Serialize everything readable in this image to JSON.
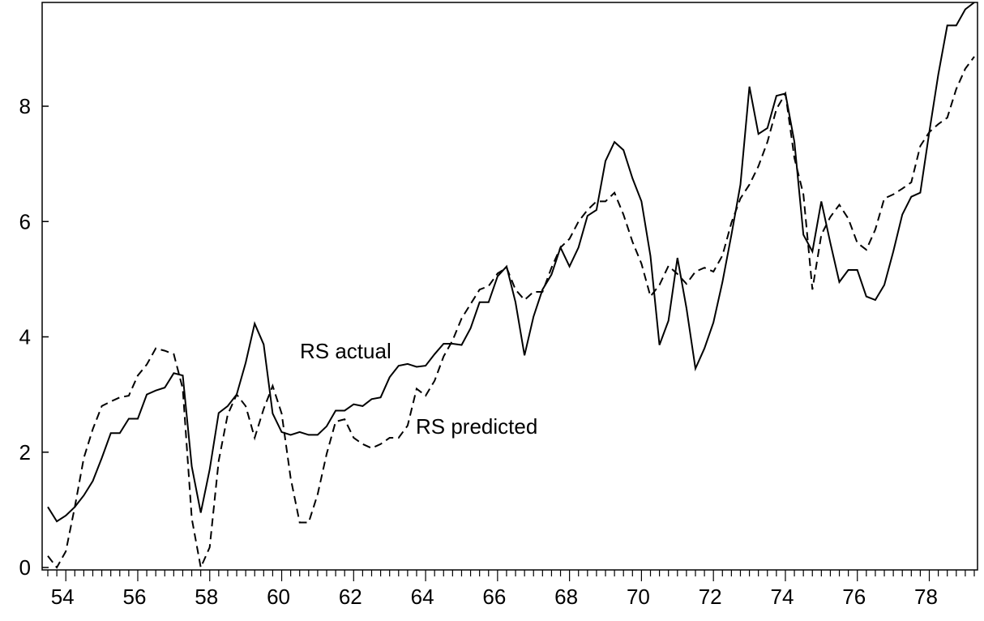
{
  "chart_data": {
    "type": "line",
    "categories": [
      null,
      null,
      "54",
      null,
      null,
      null,
      null,
      null,
      null,
      null,
      "56",
      null,
      null,
      null,
      null,
      null,
      null,
      null,
      "58",
      null,
      null,
      null,
      null,
      null,
      null,
      null,
      "60",
      null,
      null,
      null,
      null,
      null,
      null,
      null,
      "62",
      null,
      null,
      null,
      null,
      null,
      null,
      null,
      "64",
      null,
      null,
      null,
      null,
      null,
      null,
      null,
      "66",
      null,
      null,
      null,
      null,
      null,
      null,
      null,
      "68",
      null,
      null,
      null,
      null,
      null,
      null,
      null,
      "70",
      null,
      null,
      null,
      null,
      null,
      null,
      null,
      "72",
      null,
      null,
      null,
      null,
      null,
      null,
      null,
      "74",
      null,
      null,
      null,
      null,
      null,
      null,
      null,
      "76",
      null,
      null,
      null,
      null,
      null,
      null,
      null,
      "78",
      null,
      null,
      null,
      null,
      null
    ],
    "series": [
      {
        "name": "RS actual",
        "color": "#000000",
        "dash": false,
        "values": [
          1.05,
          0.8,
          0.9,
          1.05,
          1.25,
          1.5,
          1.9,
          2.33,
          2.33,
          2.58,
          2.58,
          3.0,
          3.07,
          3.12,
          3.37,
          3.33,
          1.75,
          0.95,
          1.7,
          2.68,
          2.8,
          3.0,
          3.55,
          4.23,
          3.87,
          2.67,
          2.35,
          2.3,
          2.35,
          2.3,
          2.3,
          2.45,
          2.72,
          2.72,
          2.83,
          2.8,
          2.92,
          2.95,
          3.3,
          3.5,
          3.53,
          3.48,
          3.5,
          3.7,
          3.88,
          3.88,
          3.86,
          4.15,
          4.6,
          4.6,
          5.05,
          5.22,
          4.6,
          3.68,
          4.35,
          4.82,
          5.08,
          5.55,
          5.22,
          5.55,
          6.1,
          6.2,
          7.05,
          7.38,
          7.24,
          6.75,
          6.35,
          5.4,
          3.86,
          4.28,
          5.37,
          4.5,
          3.45,
          3.8,
          4.25,
          4.95,
          5.77,
          6.64,
          8.34,
          7.52,
          7.62,
          8.18,
          8.22,
          7.38,
          5.77,
          5.48,
          6.35,
          5.63,
          4.95,
          5.16,
          5.16,
          4.7,
          4.64,
          4.9,
          5.48,
          6.12,
          6.43,
          6.5,
          7.55,
          8.55,
          9.4,
          9.4,
          9.68,
          9.8
        ]
      },
      {
        "name": "RS predicted",
        "color": "#000000",
        "dash": true,
        "values": [
          0.2,
          0.0,
          0.28,
          1.05,
          1.9,
          2.4,
          2.8,
          2.88,
          2.95,
          2.98,
          3.33,
          3.52,
          3.8,
          3.76,
          3.7,
          3.1,
          0.85,
          0.0,
          0.35,
          1.85,
          2.65,
          3.0,
          2.8,
          2.25,
          2.75,
          3.15,
          2.67,
          1.55,
          0.78,
          0.78,
          1.27,
          1.97,
          2.53,
          2.57,
          2.25,
          2.14,
          2.07,
          2.14,
          2.25,
          2.25,
          2.46,
          3.1,
          2.98,
          3.24,
          3.66,
          3.94,
          4.32,
          4.57,
          4.82,
          4.88,
          5.1,
          5.2,
          4.82,
          4.64,
          4.78,
          4.78,
          5.2,
          5.55,
          5.7,
          6.0,
          6.2,
          6.35,
          6.35,
          6.5,
          6.12,
          5.65,
          5.27,
          4.7,
          4.9,
          5.23,
          5.09,
          4.92,
          5.13,
          5.2,
          5.13,
          5.41,
          5.98,
          6.4,
          6.64,
          6.96,
          7.38,
          7.95,
          8.22,
          7.1,
          6.47,
          4.82,
          5.77,
          6.08,
          6.29,
          6.05,
          5.63,
          5.51,
          5.86,
          6.4,
          6.47,
          6.57,
          6.68,
          7.31,
          7.55,
          7.69,
          7.8,
          8.3,
          8.65,
          8.86
        ]
      }
    ],
    "ylim": [
      0,
      9.8
    ],
    "yticks": [
      0,
      2,
      4,
      6,
      8
    ],
    "grid": false
  }
}
